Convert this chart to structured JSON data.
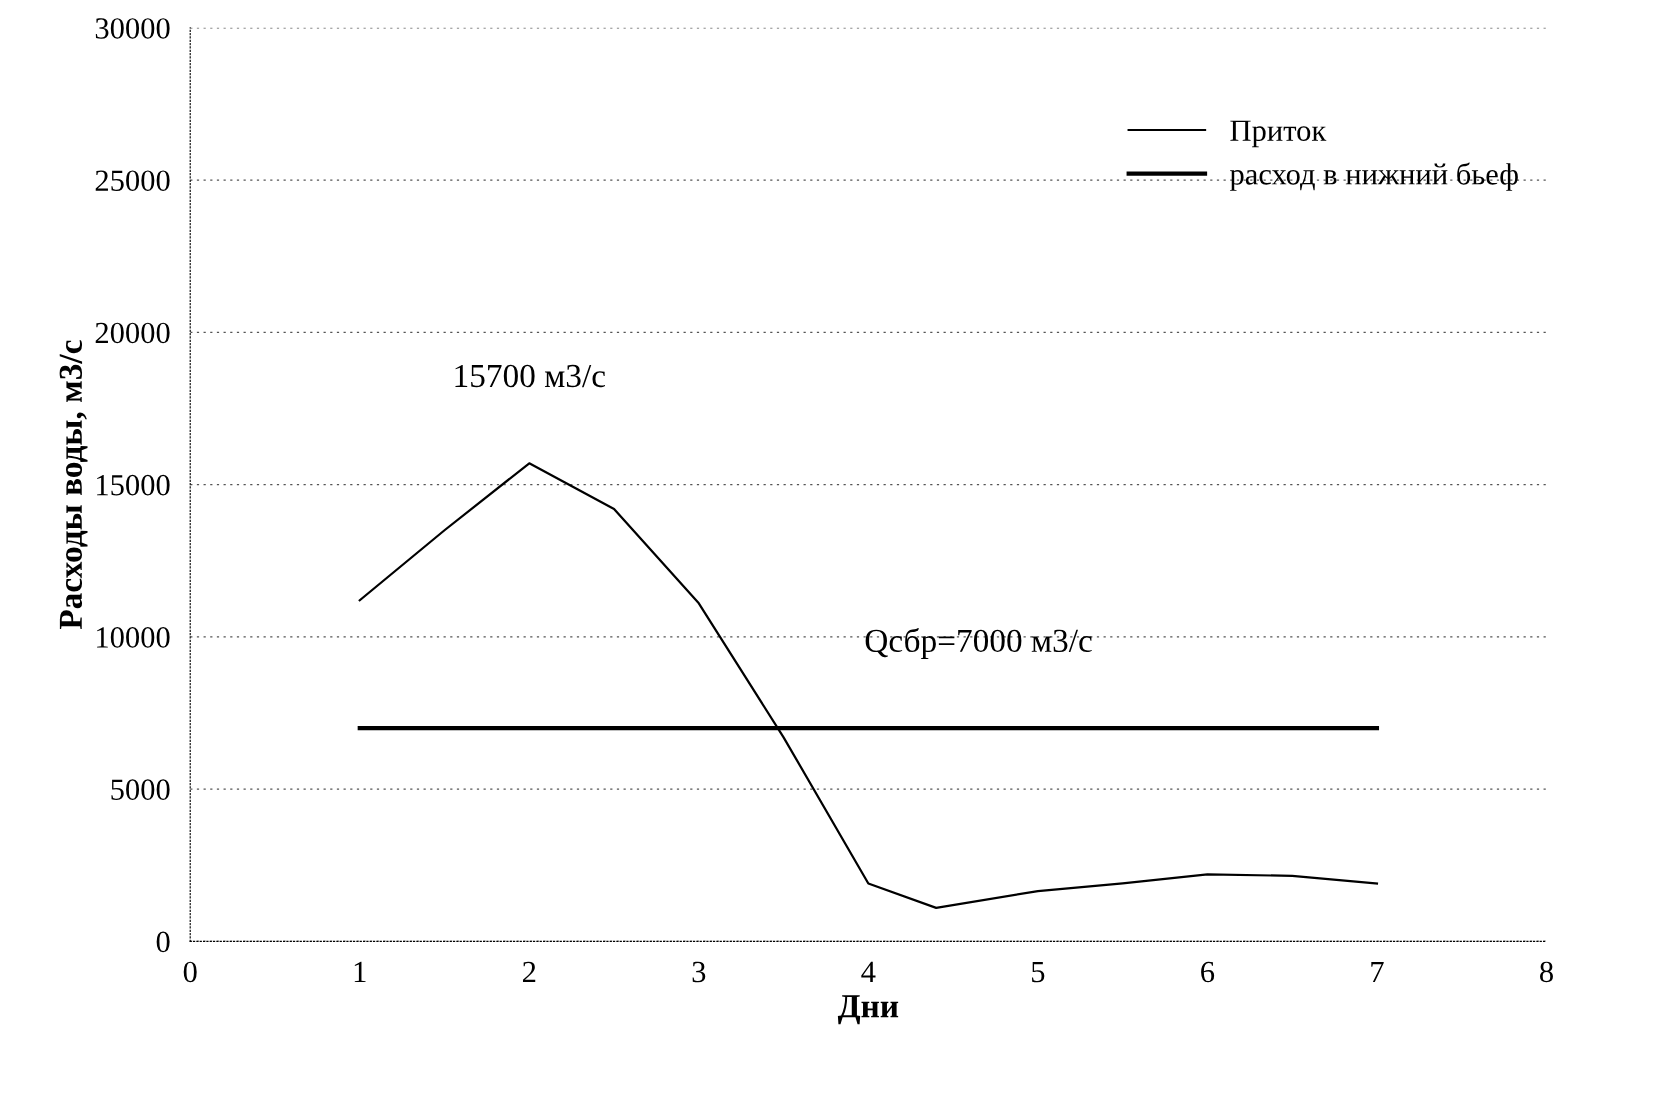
{
  "chart_data": {
    "type": "line",
    "xlabel": "Дни",
    "ylabel": "Расходы воды, м3/с",
    "xlim": [
      0,
      8
    ],
    "xticks": [
      0,
      1,
      2,
      3,
      4,
      5,
      6,
      7,
      8
    ],
    "ylim": [
      0,
      30000
    ],
    "yticks": [
      0,
      5000,
      10000,
      15000,
      20000,
      25000,
      30000
    ],
    "grid": "y",
    "legend": "top right",
    "marker": "none",
    "series": [
      {
        "name": "Приток",
        "color": "#000000",
        "x": [
          1,
          1.5,
          2,
          2.5,
          3,
          3.5,
          4,
          4.4,
          5,
          5.5,
          6,
          6.5,
          7
        ],
        "values": [
          11200,
          13500,
          15700,
          14200,
          11100,
          6700,
          1900,
          1100,
          1650,
          1900,
          2200,
          2150,
          1900
        ],
        "line_style": "solid"
      },
      {
        "name": "расход в нижний бьеф",
        "color": "#000000",
        "x": [
          1,
          7
        ],
        "values": [
          7000,
          7000
        ],
        "line_style": "solid"
      }
    ],
    "annotations": [
      {
        "text": "15700 м3/с",
        "x": 2,
        "y": 15700
      },
      {
        "text": "Qсбр=7000 м3/с",
        "x": 4.65,
        "y": 7000
      }
    ]
  }
}
